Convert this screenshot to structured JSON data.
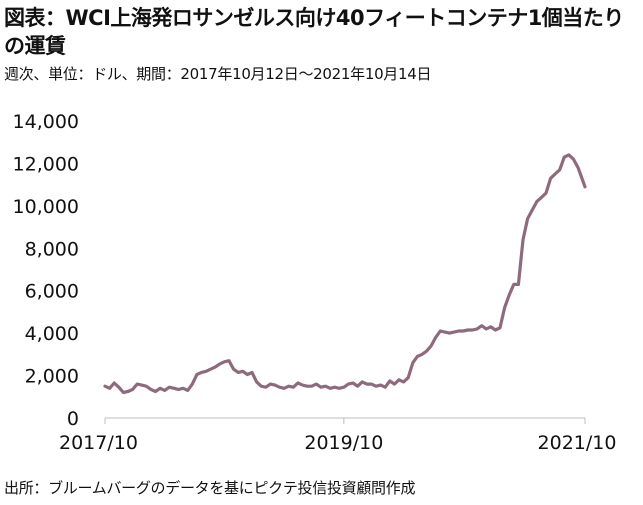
{
  "title": "図表：WCI上海発ロサンゼルス向け40フィートコンテナ1個当たりの運賃",
  "subtitle": "週次、単位：ドル、期間：2017年10月12日～2021年10月14日",
  "source": "出所：ブルームバーグのデータを基にピクテ投信投資顧問作成",
  "chart_data": {
    "type": "line",
    "title": "図表：WCI上海発ロサンゼルス向け40フィートコンテナ1個当たりの運賃",
    "xlabel": "",
    "ylabel": "",
    "ylim": [
      0,
      14000
    ],
    "xlim": [
      "2017-10-12",
      "2021-10-14"
    ],
    "y_ticks": [
      {
        "value": 0,
        "label": "0"
      },
      {
        "value": 2000,
        "label": "2,000"
      },
      {
        "value": 4000,
        "label": "4,000"
      },
      {
        "value": 6000,
        "label": "6,000"
      },
      {
        "value": 8000,
        "label": "8,000"
      },
      {
        "value": 10000,
        "label": "10,000"
      },
      {
        "value": 12000,
        "label": "12,000"
      },
      {
        "value": 14000,
        "label": "14,000"
      }
    ],
    "x_ticks": [
      {
        "value": "2017-10-12",
        "label": "2017/10"
      },
      {
        "value": "2019-10-10",
        "label": "2019/10"
      },
      {
        "value": "2021-10-14",
        "label": "2021/10"
      }
    ],
    "grid": false,
    "legend": "none",
    "line_color": "#8e6b7c",
    "series": [
      {
        "x": [
          "2017-10-12",
          "2017-10-26",
          "2017-11-09",
          "2017-11-23",
          "2017-12-07",
          "2017-12-21",
          "2018-01-04",
          "2018-01-18",
          "2018-02-01",
          "2018-02-15",
          "2018-03-01",
          "2018-03-15",
          "2018-03-29",
          "2018-04-12",
          "2018-04-26",
          "2018-05-10",
          "2018-05-24",
          "2018-06-07",
          "2018-06-21",
          "2018-07-05",
          "2018-07-19",
          "2018-08-02",
          "2018-08-16",
          "2018-08-30",
          "2018-09-13",
          "2018-09-27",
          "2018-10-11",
          "2018-10-25",
          "2018-11-08",
          "2018-11-22",
          "2018-12-06",
          "2018-12-20",
          "2019-01-03",
          "2019-01-17",
          "2019-01-31",
          "2019-02-14",
          "2019-02-28",
          "2019-03-14",
          "2019-03-28",
          "2019-04-11",
          "2019-04-25",
          "2019-05-09",
          "2019-05-23",
          "2019-06-06",
          "2019-06-20",
          "2019-07-04",
          "2019-07-18",
          "2019-08-01",
          "2019-08-15",
          "2019-08-29",
          "2019-09-12",
          "2019-09-26",
          "2019-10-10",
          "2019-10-24",
          "2019-11-07",
          "2019-11-21",
          "2019-12-05",
          "2019-12-19",
          "2020-01-02",
          "2020-01-16",
          "2020-01-30",
          "2020-02-13",
          "2020-02-27",
          "2020-03-12",
          "2020-03-26",
          "2020-04-09",
          "2020-04-23",
          "2020-05-07",
          "2020-05-21",
          "2020-06-04",
          "2020-06-18",
          "2020-07-02",
          "2020-07-16",
          "2020-07-30",
          "2020-08-13",
          "2020-08-27",
          "2020-09-10",
          "2020-09-24",
          "2020-10-08",
          "2020-10-22",
          "2020-11-05",
          "2020-11-19",
          "2020-12-03",
          "2020-12-17",
          "2020-12-31",
          "2021-01-14",
          "2021-01-28",
          "2021-02-11",
          "2021-02-25",
          "2021-03-11",
          "2021-03-25",
          "2021-04-08",
          "2021-04-22",
          "2021-05-06",
          "2021-05-20",
          "2021-06-03",
          "2021-06-17",
          "2021-07-01",
          "2021-07-15",
          "2021-07-29",
          "2021-08-12",
          "2021-08-26",
          "2021-09-09",
          "2021-09-23",
          "2021-10-07",
          "2021-10-14"
        ],
        "y": [
          1500,
          1400,
          1650,
          1450,
          1200,
          1250,
          1350,
          1600,
          1550,
          1500,
          1350,
          1250,
          1400,
          1300,
          1450,
          1400,
          1350,
          1400,
          1300,
          1600,
          2050,
          2150,
          2200,
          2300,
          2400,
          2550,
          2650,
          2700,
          2300,
          2150,
          2200,
          2050,
          2150,
          1700,
          1500,
          1450,
          1600,
          1550,
          1450,
          1400,
          1500,
          1450,
          1650,
          1550,
          1500,
          1500,
          1600,
          1450,
          1500,
          1400,
          1450,
          1400,
          1450,
          1600,
          1650,
          1500,
          1700,
          1600,
          1600,
          1500,
          1550,
          1450,
          1750,
          1600,
          1800,
          1700,
          1900,
          2600,
          2900,
          3000,
          3150,
          3400,
          3800,
          4100,
          4050,
          4000,
          4050,
          4100,
          4100,
          4150,
          4150,
          4200,
          4350,
          4200,
          4300,
          4150,
          4250,
          5200,
          5800,
          6300,
          6300,
          8400,
          9400,
          9800,
          10200,
          10400,
          10600,
          11300,
          11500,
          11700,
          12300,
          12400,
          12200,
          11800,
          11200,
          10900
        ]
      }
    ]
  }
}
